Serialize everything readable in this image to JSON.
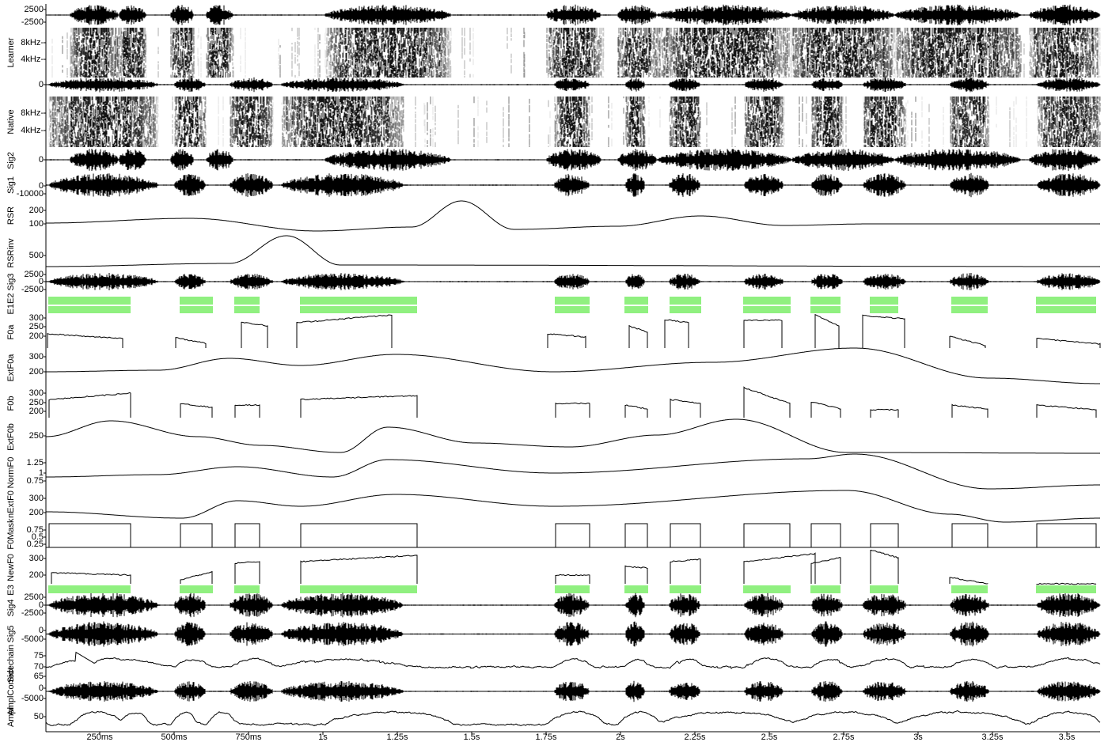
{
  "tracks": [
    {
      "ticks": [
        "2500",
        "-2500"
      ]
    },
    {
      "label": "Learner",
      "ticks": [
        "8kHz-",
        "4kHz-"
      ]
    },
    {
      "ticks": [
        "0"
      ]
    },
    {
      "label": "Native",
      "ticks": [
        "8kHz-",
        "4kHz-"
      ]
    },
    {
      "label": "Sig2",
      "ticks": [
        "0"
      ]
    },
    {
      "label": "Sig1",
      "ticks": [
        "0",
        "-10000"
      ]
    },
    {
      "label": "RSR",
      "ticks": [
        "200",
        "100"
      ]
    },
    {
      "label": "RSRinv",
      "ticks": [
        "500"
      ]
    },
    {
      "label": "Sig3",
      "ticks": [
        "2500",
        "0",
        "-2500"
      ]
    },
    {
      "label": "E1E2",
      "ticks": []
    },
    {
      "label": "F0a",
      "ticks": [
        "300",
        "250",
        "200"
      ]
    },
    {
      "label": "ExtF0a",
      "ticks": [
        "300",
        "200"
      ]
    },
    {
      "label": "F0b",
      "ticks": [
        "300",
        "250",
        "200"
      ]
    },
    {
      "label": "ExtF0b",
      "ticks": [
        "250"
      ]
    },
    {
      "label": "NormF0",
      "ticks": [
        "1.25",
        "1",
        "0.75"
      ]
    },
    {
      "label": "nExtF0",
      "ticks": [
        "300",
        "200"
      ]
    },
    {
      "label": "F0Mask",
      "ticks": [
        "0.75",
        "0.5",
        "0.25"
      ]
    },
    {
      "label": "NewF0",
      "ticks": [
        "300",
        "200"
      ]
    },
    {
      "label": "E3",
      "ticks": []
    },
    {
      "label": "Sig4",
      "ticks": [
        "2500",
        "0",
        "-2500"
      ]
    },
    {
      "label": "Sig5",
      "ticks": [
        "0",
        "-5000"
      ]
    },
    {
      "label": "Sidechain",
      "ticks": [
        "75",
        "70",
        "65"
      ]
    },
    {
      "label": "AmplCorrect",
      "ticks": [
        "0",
        "-5000"
      ]
    },
    {
      "label": "Ampl",
      "ticks": [
        "50"
      ]
    }
  ],
  "time_axis": [
    "250ms",
    "500ms",
    "750ms",
    "1s",
    "1.25s",
    "1.5s",
    "1.75s",
    "2s",
    "2.25s",
    "2.5s",
    "2.75s",
    "3s",
    "3.25s",
    "3.5s"
  ]
}
